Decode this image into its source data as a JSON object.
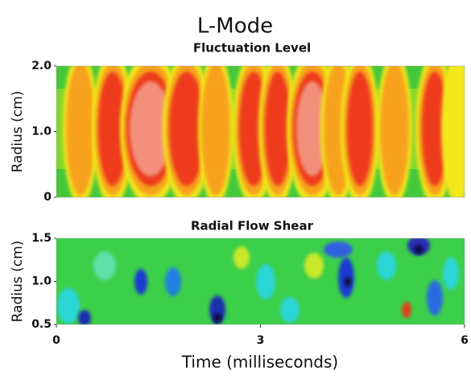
{
  "title": "L-Mode",
  "chart_data": [
    {
      "type": "contour",
      "subtitle": "Fluctuation Level",
      "ylabel": "Radius (cm)",
      "xlim": [
        0,
        6
      ],
      "ylim": [
        0,
        2
      ],
      "yticks": [
        0,
        {
          "value": 1,
          "label": "1.0"
        },
        {
          "value": 2,
          "label": "2.0"
        }
      ]
    },
    {
      "type": "contour",
      "subtitle": "Radial Flow Shear",
      "ylabel": "Radius (cm)",
      "xlabel": "Time (milliseconds)",
      "xlim": [
        0,
        6
      ],
      "ylim": [
        0.5,
        1.5
      ],
      "xticks": [
        0,
        3,
        6
      ],
      "yticks": [
        {
          "value": 0.5,
          "label": "0.5"
        },
        {
          "value": 1,
          "label": "1.0"
        },
        {
          "value": 1.5,
          "label": "1.5"
        }
      ]
    }
  ]
}
